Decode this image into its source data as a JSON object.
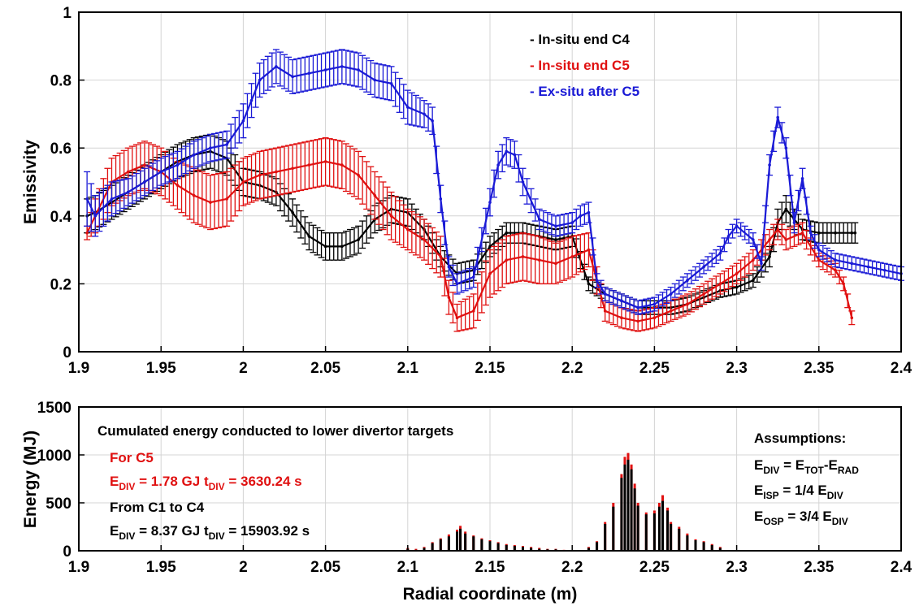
{
  "chart_data": [
    {
      "type": "line",
      "title": "",
      "xlabel": "",
      "ylabel": "Emissivity",
      "xlim": [
        1.9,
        2.4
      ],
      "ylim": [
        0,
        1
      ],
      "xticks": [
        "1.9",
        "1.95",
        "2",
        "2.05",
        "2.1",
        "2.15",
        "2.2",
        "2.25",
        "2.3",
        "2.35",
        "2.4"
      ],
      "yticks": [
        "0",
        "0.2",
        "0.4",
        "0.6",
        "0.8",
        "1"
      ],
      "grid": true,
      "legend_position": "top-right",
      "series": [
        {
          "name": "- In-situ end C4",
          "color": "#000000",
          "error_bars": true,
          "x": [
            1.905,
            1.91,
            1.92,
            1.93,
            1.94,
            1.95,
            1.96,
            1.97,
            1.98,
            1.99,
            2.0,
            2.01,
            2.02,
            2.03,
            2.04,
            2.05,
            2.06,
            2.07,
            2.08,
            2.09,
            2.1,
            2.11,
            2.12,
            2.13,
            2.14,
            2.15,
            2.16,
            2.17,
            2.18,
            2.19,
            2.2,
            2.21,
            2.22,
            2.23,
            2.24,
            2.25,
            2.26,
            2.27,
            2.28,
            2.29,
            2.3,
            2.31,
            2.32,
            2.325,
            2.33,
            2.335,
            2.34,
            2.35,
            2.36,
            2.37,
            2.372
          ],
          "y": [
            0.4,
            0.41,
            0.44,
            0.47,
            0.5,
            0.53,
            0.56,
            0.58,
            0.59,
            0.57,
            0.5,
            0.49,
            0.47,
            0.41,
            0.34,
            0.31,
            0.31,
            0.33,
            0.39,
            0.42,
            0.41,
            0.36,
            0.28,
            0.23,
            0.24,
            0.31,
            0.35,
            0.35,
            0.34,
            0.33,
            0.34,
            0.2,
            0.17,
            0.15,
            0.13,
            0.13,
            0.13,
            0.14,
            0.16,
            0.18,
            0.19,
            0.21,
            0.28,
            0.38,
            0.42,
            0.39,
            0.36,
            0.35,
            0.35,
            0.35,
            0.35
          ],
          "err": [
            0.05,
            0.05,
            0.05,
            0.05,
            0.05,
            0.05,
            0.05,
            0.05,
            0.05,
            0.05,
            0.04,
            0.04,
            0.04,
            0.04,
            0.04,
            0.04,
            0.04,
            0.04,
            0.04,
            0.04,
            0.04,
            0.03,
            0.03,
            0.03,
            0.03,
            0.03,
            0.03,
            0.03,
            0.03,
            0.03,
            0.03,
            0.02,
            0.02,
            0.02,
            0.02,
            0.02,
            0.02,
            0.02,
            0.02,
            0.02,
            0.02,
            0.02,
            0.03,
            0.04,
            0.04,
            0.03,
            0.03,
            0.03,
            0.03,
            0.03,
            0.03
          ]
        },
        {
          "name": "- In-situ end C5",
          "color": "#e01010",
          "error_bars": true,
          "x": [
            1.905,
            1.91,
            1.92,
            1.93,
            1.94,
            1.95,
            1.96,
            1.97,
            1.98,
            1.99,
            2.0,
            2.01,
            2.02,
            2.03,
            2.04,
            2.05,
            2.06,
            2.07,
            2.08,
            2.09,
            2.1,
            2.11,
            2.12,
            2.125,
            2.13,
            2.14,
            2.15,
            2.16,
            2.17,
            2.18,
            2.19,
            2.2,
            2.21,
            2.22,
            2.23,
            2.24,
            2.25,
            2.26,
            2.27,
            2.28,
            2.29,
            2.3,
            2.31,
            2.32,
            2.325,
            2.33,
            2.34,
            2.35,
            2.36,
            2.365,
            2.37
          ],
          "y": [
            0.35,
            0.4,
            0.5,
            0.53,
            0.55,
            0.53,
            0.49,
            0.46,
            0.44,
            0.45,
            0.5,
            0.52,
            0.53,
            0.54,
            0.55,
            0.56,
            0.55,
            0.52,
            0.46,
            0.4,
            0.36,
            0.33,
            0.28,
            0.16,
            0.1,
            0.12,
            0.23,
            0.27,
            0.28,
            0.27,
            0.26,
            0.28,
            0.3,
            0.12,
            0.1,
            0.09,
            0.1,
            0.12,
            0.14,
            0.17,
            0.2,
            0.23,
            0.27,
            0.33,
            0.36,
            0.33,
            0.35,
            0.27,
            0.24,
            0.2,
            0.1
          ],
          "err": [
            0.02,
            0.05,
            0.07,
            0.07,
            0.07,
            0.07,
            0.07,
            0.08,
            0.08,
            0.08,
            0.07,
            0.07,
            0.07,
            0.07,
            0.07,
            0.07,
            0.07,
            0.07,
            0.07,
            0.07,
            0.06,
            0.06,
            0.06,
            0.05,
            0.04,
            0.05,
            0.07,
            0.07,
            0.07,
            0.07,
            0.06,
            0.06,
            0.05,
            0.03,
            0.03,
            0.03,
            0.03,
            0.03,
            0.03,
            0.03,
            0.03,
            0.03,
            0.03,
            0.03,
            0.03,
            0.03,
            0.03,
            0.02,
            0.02,
            0.02,
            0.02
          ]
        },
        {
          "name": "- Ex-situ after C5",
          "color": "#1a1ad6",
          "error_bars": true,
          "x": [
            1.905,
            1.91,
            1.92,
            1.93,
            1.94,
            1.95,
            1.96,
            1.97,
            1.98,
            1.99,
            2.0,
            2.005,
            2.01,
            2.02,
            2.03,
            2.04,
            2.05,
            2.06,
            2.07,
            2.08,
            2.09,
            2.1,
            2.11,
            2.115,
            2.12,
            2.125,
            2.13,
            2.14,
            2.15,
            2.155,
            2.16,
            2.165,
            2.17,
            2.18,
            2.19,
            2.2,
            2.205,
            2.21,
            2.215,
            2.22,
            2.23,
            2.24,
            2.25,
            2.26,
            2.27,
            2.28,
            2.29,
            2.295,
            2.3,
            2.31,
            2.315,
            2.32,
            2.325,
            2.33,
            2.335,
            2.34,
            2.345,
            2.35,
            2.36,
            2.37,
            2.38,
            2.39,
            2.4
          ],
          "y": [
            0.45,
            0.4,
            0.45,
            0.47,
            0.5,
            0.53,
            0.55,
            0.58,
            0.6,
            0.61,
            0.68,
            0.74,
            0.8,
            0.84,
            0.81,
            0.82,
            0.83,
            0.84,
            0.83,
            0.8,
            0.79,
            0.72,
            0.7,
            0.68,
            0.45,
            0.25,
            0.2,
            0.22,
            0.44,
            0.55,
            0.59,
            0.58,
            0.5,
            0.39,
            0.37,
            0.38,
            0.4,
            0.41,
            0.21,
            0.17,
            0.15,
            0.13,
            0.14,
            0.17,
            0.21,
            0.25,
            0.29,
            0.34,
            0.37,
            0.33,
            0.26,
            0.55,
            0.69,
            0.6,
            0.38,
            0.51,
            0.35,
            0.3,
            0.27,
            0.26,
            0.25,
            0.24,
            0.23
          ],
          "err": [
            0.08,
            0.06,
            0.05,
            0.04,
            0.04,
            0.04,
            0.04,
            0.04,
            0.04,
            0.04,
            0.05,
            0.05,
            0.05,
            0.05,
            0.05,
            0.05,
            0.05,
            0.05,
            0.05,
            0.05,
            0.05,
            0.05,
            0.04,
            0.04,
            0.04,
            0.03,
            0.03,
            0.03,
            0.04,
            0.04,
            0.04,
            0.04,
            0.04,
            0.03,
            0.03,
            0.03,
            0.03,
            0.03,
            0.02,
            0.02,
            0.02,
            0.02,
            0.02,
            0.02,
            0.02,
            0.02,
            0.02,
            0.02,
            0.02,
            0.02,
            0.02,
            0.03,
            0.03,
            0.03,
            0.03,
            0.03,
            0.02,
            0.02,
            0.02,
            0.02,
            0.02,
            0.02,
            0.02
          ]
        }
      ]
    },
    {
      "type": "bar",
      "title": "Cumulated energy conducted to lower divertor targets",
      "xlabel": "Radial coordinate (m)",
      "ylabel": "Energy (MJ)",
      "xlim": [
        1.9,
        2.4
      ],
      "ylim": [
        0,
        1500
      ],
      "xticks": [
        "1.9",
        "1.95",
        "2",
        "2.05",
        "2.1",
        "2.15",
        "2.2",
        "2.25",
        "2.3",
        "2.35",
        "2.4"
      ],
      "yticks": [
        "0",
        "500",
        "1000",
        "1500"
      ],
      "grid": true,
      "series": [
        {
          "name": "For C5",
          "color": "#e01010",
          "x": [
            2.1,
            2.105,
            2.11,
            2.115,
            2.12,
            2.125,
            2.13,
            2.132,
            2.135,
            2.14,
            2.145,
            2.15,
            2.155,
            2.16,
            2.165,
            2.17,
            2.175,
            2.18,
            2.185,
            2.19,
            2.195,
            2.21,
            2.215,
            2.22,
            2.225,
            2.23,
            2.232,
            2.234,
            2.236,
            2.238,
            2.24,
            2.245,
            2.25,
            2.253,
            2.255,
            2.258,
            2.26,
            2.265,
            2.27,
            2.275,
            2.28,
            2.285,
            2.29
          ],
          "values": [
            30,
            20,
            40,
            90,
            130,
            170,
            220,
            260,
            200,
            160,
            130,
            110,
            90,
            70,
            60,
            50,
            40,
            30,
            20,
            20,
            10,
            40,
            100,
            300,
            500,
            800,
            980,
            1020,
            900,
            700,
            500,
            400,
            420,
            500,
            580,
            450,
            300,
            250,
            180,
            120,
            100,
            70,
            40
          ]
        },
        {
          "name": "From C1 to C4",
          "color": "#000000",
          "x": [
            2.1,
            2.105,
            2.11,
            2.115,
            2.12,
            2.125,
            2.13,
            2.132,
            2.135,
            2.14,
            2.145,
            2.15,
            2.155,
            2.16,
            2.165,
            2.17,
            2.175,
            2.18,
            2.185,
            2.19,
            2.195,
            2.21,
            2.215,
            2.22,
            2.225,
            2.23,
            2.232,
            2.234,
            2.236,
            2.238,
            2.24,
            2.245,
            2.25,
            2.253,
            2.255,
            2.258,
            2.26,
            2.265,
            2.27,
            2.275,
            2.28,
            2.285,
            2.29
          ],
          "values": [
            20,
            10,
            30,
            80,
            120,
            150,
            200,
            230,
            180,
            150,
            120,
            100,
            80,
            60,
            50,
            40,
            30,
            20,
            15,
            15,
            8,
            30,
            90,
            280,
            460,
            760,
            900,
            950,
            850,
            650,
            470,
            380,
            390,
            460,
            520,
            420,
            280,
            230,
            160,
            110,
            90,
            60,
            30
          ]
        }
      ],
      "annotations": {
        "c5_label": "For C5",
        "c5_ediv": "E",
        "c5_ediv_sub": "DIV",
        "c5_ediv_val": " = 1.78 GJ  t",
        "c5_tdiv_sub": "DIV",
        "c5_tdiv_val": " = 3630.24 s",
        "c14_label": "From C1 to C4",
        "c14_ediv": "E",
        "c14_ediv_sub": "DIV",
        "c14_ediv_val": " = 8.37 GJ  t",
        "c14_tdiv_sub": "DIV",
        "c14_tdiv_val": " = 15903.92 s",
        "assumptions_title": "Assumptions:",
        "a1_e": "E",
        "a1_sub1": "DIV",
        "a1_mid": " = E",
        "a1_sub2": "TOT",
        "a1_mid2": "-E",
        "a1_sub3": "RAD",
        "a2_e": "E",
        "a2_sub1": "ISP",
        "a2_mid": " = 1/4 E",
        "a2_sub2": "DIV",
        "a3_e": "E",
        "a3_sub1": "OSP",
        "a3_mid": " = 3/4 E",
        "a3_sub2": "DIV"
      }
    }
  ]
}
